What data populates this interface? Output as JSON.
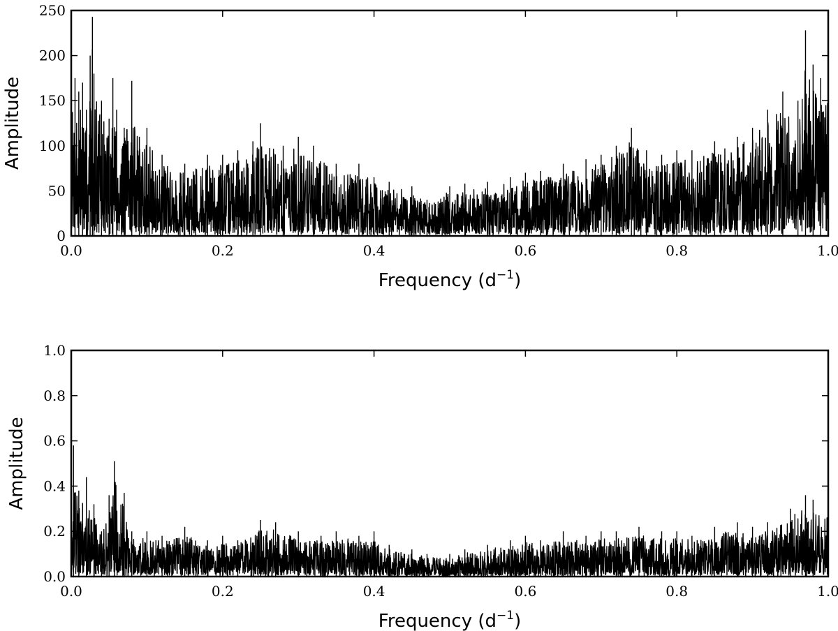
{
  "chart_data": [
    {
      "type": "line",
      "title": "",
      "xlabel_main": "Frequency (d",
      "xlabel_sup": "−1",
      "xlabel_tail": ")",
      "ylabel": "Amplitude",
      "xlim": [
        0.0,
        1.0
      ],
      "ylim": [
        0,
        250
      ],
      "xticks": [
        "0.0",
        "0.2",
        "0.4",
        "0.6",
        "0.8",
        "1.0"
      ],
      "xtick_values": [
        0.0,
        0.2,
        0.4,
        0.6,
        0.8,
        1.0
      ],
      "yticks": [
        "0",
        "50",
        "100",
        "150",
        "200",
        "250"
      ],
      "ytick_values": [
        0,
        50,
        100,
        150,
        200,
        250
      ],
      "grid": false,
      "line_color": "#000000",
      "series": [
        {
          "x": [
            0.0,
            0.005,
            0.01,
            0.015,
            0.02,
            0.025,
            0.028,
            0.03,
            0.04,
            0.05,
            0.055,
            0.06,
            0.07,
            0.08,
            0.09,
            0.1,
            0.12,
            0.15,
            0.18,
            0.2,
            0.22,
            0.24,
            0.25,
            0.28,
            0.3,
            0.32,
            0.35,
            0.38,
            0.4,
            0.42,
            0.45,
            0.47,
            0.5,
            0.52,
            0.55,
            0.58,
            0.6,
            0.62,
            0.65,
            0.68,
            0.7,
            0.72,
            0.74,
            0.76,
            0.78,
            0.8,
            0.82,
            0.85,
            0.88,
            0.9,
            0.92,
            0.94,
            0.96,
            0.97,
            0.98,
            0.99,
            1.0
          ],
          "y": [
            150,
            175,
            160,
            170,
            140,
            200,
            243,
            180,
            150,
            130,
            175,
            140,
            120,
            172,
            110,
            120,
            90,
            80,
            90,
            90,
            95,
            105,
            125,
            100,
            110,
            100,
            80,
            80,
            65,
            60,
            55,
            40,
            55,
            58,
            60,
            65,
            70,
            72,
            80,
            85,
            90,
            100,
            120,
            95,
            90,
            95,
            95,
            105,
            110,
            120,
            140,
            160,
            150,
            228,
            190,
            175,
            170
          ]
        }
      ]
    },
    {
      "type": "line",
      "title": "",
      "xlabel_main": "Frequency (d",
      "xlabel_sup": "−1",
      "xlabel_tail": ")",
      "ylabel": "Amplitude",
      "xlim": [
        0.0,
        1.0
      ],
      "ylim": [
        0.0,
        1.0
      ],
      "xticks": [
        "0.0",
        "0.2",
        "0.4",
        "0.6",
        "0.8",
        "1.0"
      ],
      "xtick_values": [
        0.0,
        0.2,
        0.4,
        0.6,
        0.8,
        1.0
      ],
      "yticks": [
        "0.0",
        "0.2",
        "0.4",
        "0.6",
        "0.8",
        "1.0"
      ],
      "ytick_values": [
        0.0,
        0.2,
        0.4,
        0.6,
        0.8,
        1.0
      ],
      "grid": false,
      "line_color": "#000000",
      "series": [
        {
          "x": [
            0.0,
            0.003,
            0.01,
            0.02,
            0.03,
            0.04,
            0.05,
            0.057,
            0.07,
            0.08,
            0.1,
            0.12,
            0.15,
            0.18,
            0.2,
            0.22,
            0.25,
            0.27,
            0.3,
            0.33,
            0.35,
            0.38,
            0.4,
            0.42,
            0.45,
            0.47,
            0.5,
            0.52,
            0.55,
            0.58,
            0.6,
            0.62,
            0.65,
            0.68,
            0.7,
            0.72,
            0.75,
            0.78,
            0.8,
            0.82,
            0.85,
            0.88,
            0.9,
            0.92,
            0.95,
            0.97,
            0.98,
            1.0
          ],
          "y": [
            0.55,
            0.58,
            0.38,
            0.44,
            0.32,
            0.2,
            0.36,
            0.51,
            0.37,
            0.2,
            0.2,
            0.18,
            0.22,
            0.16,
            0.18,
            0.16,
            0.25,
            0.24,
            0.2,
            0.18,
            0.2,
            0.18,
            0.2,
            0.14,
            0.12,
            0.1,
            0.1,
            0.12,
            0.14,
            0.16,
            0.18,
            0.16,
            0.2,
            0.18,
            0.2,
            0.2,
            0.22,
            0.2,
            0.2,
            0.18,
            0.22,
            0.24,
            0.22,
            0.24,
            0.3,
            0.36,
            0.34,
            0.3
          ]
        }
      ]
    }
  ]
}
